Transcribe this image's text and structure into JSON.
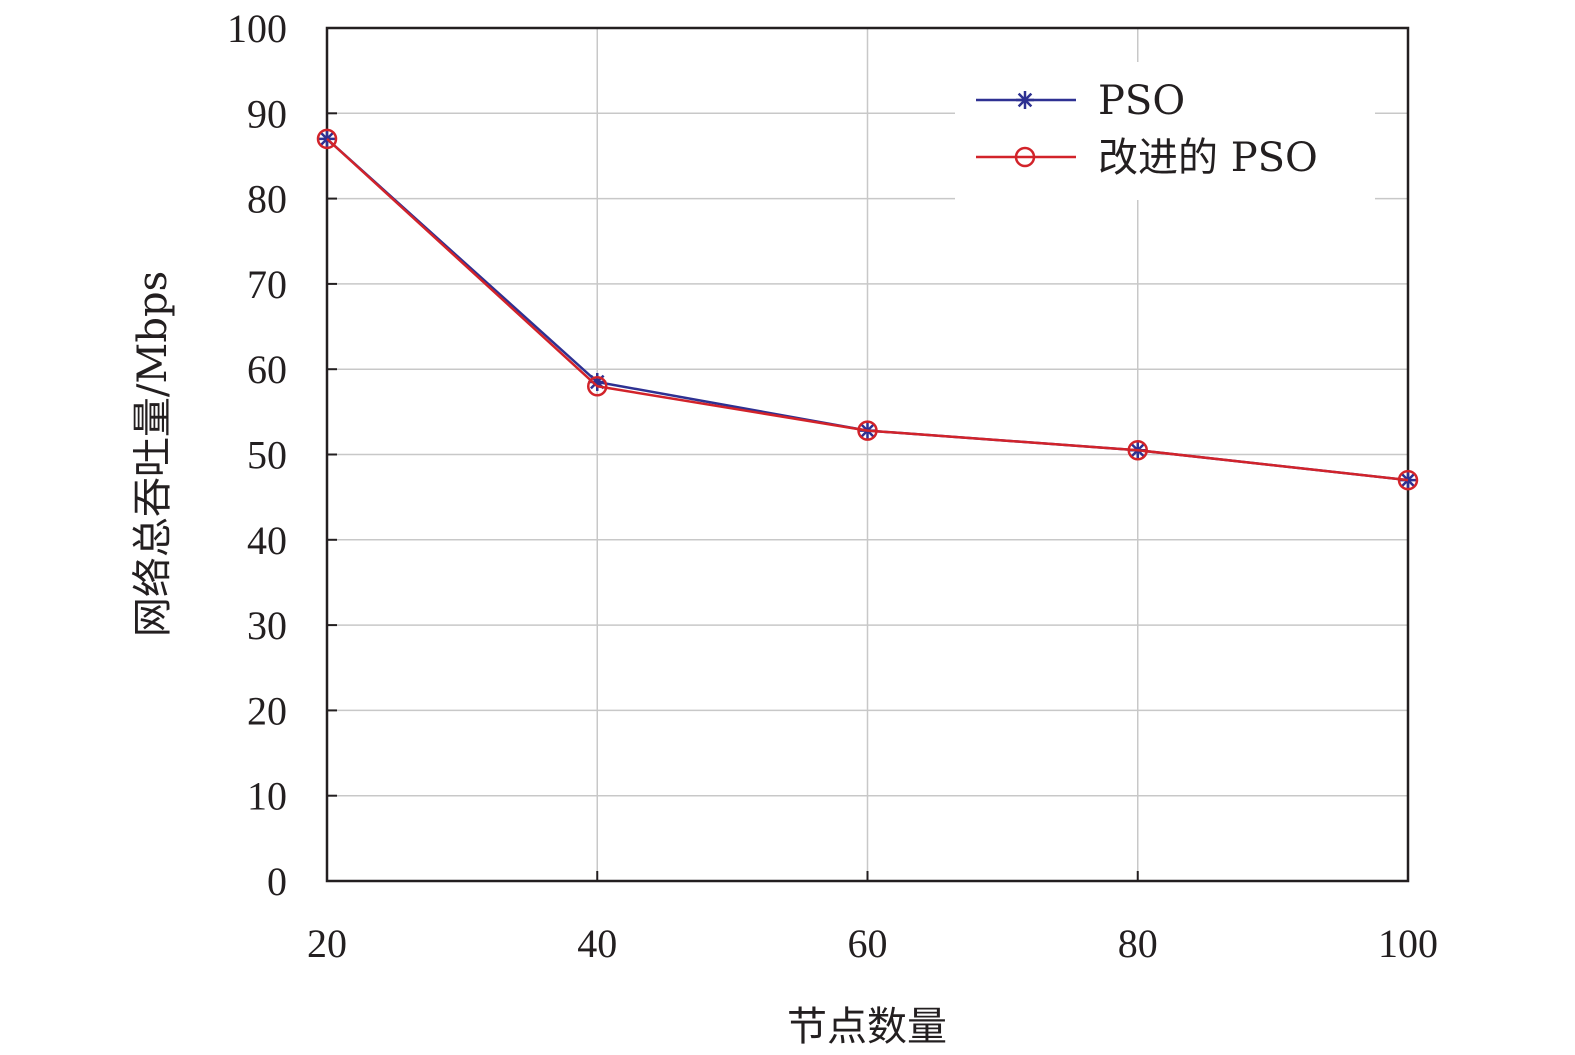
{
  "chart_data": {
    "type": "line",
    "title": "",
    "xlabel": "节点数量",
    "ylabel": "网络总吞吐量/Mbps",
    "x": [
      20,
      40,
      60,
      80,
      100
    ],
    "xlim": [
      20,
      100
    ],
    "ylim": [
      0,
      100
    ],
    "xticks": [
      "20",
      "40",
      "60",
      "80",
      "100"
    ],
    "yticks": [
      "0",
      "10",
      "20",
      "30",
      "40",
      "50",
      "60",
      "70",
      "80",
      "90",
      "100"
    ],
    "grid": true,
    "legend_position": "top-right",
    "series": [
      {
        "name": "PSO",
        "values": [
          87,
          58.5,
          52.8,
          50.5,
          47
        ],
        "color": "#2e3192",
        "marker": "asterisk"
      },
      {
        "name": "改进的 PSO",
        "values": [
          87,
          58,
          52.8,
          50.5,
          47
        ],
        "color": "#d2232a",
        "marker": "circle"
      }
    ]
  }
}
